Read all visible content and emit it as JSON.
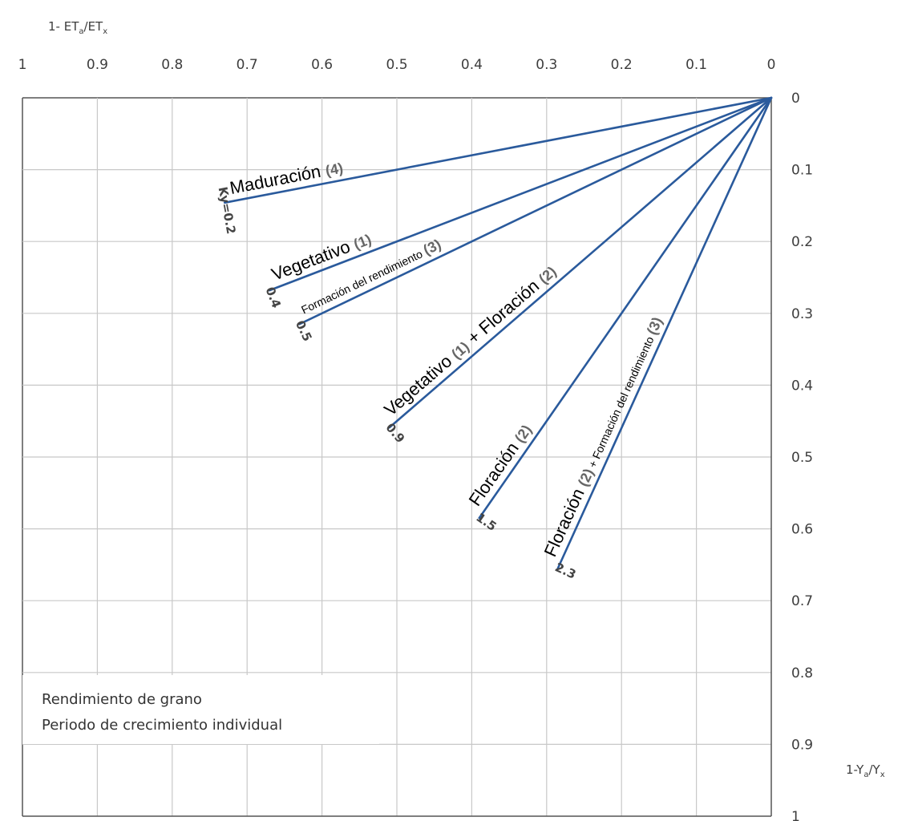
{
  "chart_data": {
    "type": "line",
    "x_axis": {
      "label_main": "1- ET",
      "label_sub1": "a",
      "label_mid": "/ET",
      "label_sub2": "x",
      "ticks": [
        "1",
        "0.9",
        "0.8",
        "0.7",
        "0.6",
        "0.5",
        "0.4",
        "0.3",
        "0.2",
        "0.1",
        "0"
      ],
      "range": [
        1,
        0
      ],
      "position": "top"
    },
    "y_axis": {
      "label_main": "1-Y",
      "label_sub1": "a",
      "label_mid": "/Y",
      "label_sub2": "x",
      "ticks": [
        "0",
        "0.1",
        "0.2",
        "0.3",
        "0.4",
        "0.5",
        "0.6",
        "0.7",
        "0.8",
        "0.9",
        "1"
      ],
      "range": [
        0,
        1
      ],
      "position": "right",
      "inverted": true
    },
    "grid": true,
    "line_color": "#2a5a9c",
    "series": [
      {
        "ky": "Ky=0.2",
        "label_parts": [
          {
            "text": "Maduración ",
            "style": "main"
          },
          {
            "text": "(4)",
            "style": "num"
          }
        ],
        "x": [
          0,
          0.73
        ],
        "y": [
          0,
          0.146
        ]
      },
      {
        "ky": "0.4",
        "label_parts": [
          {
            "text": "Vegetativo ",
            "style": "main"
          },
          {
            "text": "(1)",
            "style": "num"
          }
        ],
        "x": [
          0,
          0.67
        ],
        "y": [
          0,
          0.268
        ]
      },
      {
        "ky": "0.5",
        "label_parts": [
          {
            "text": "Formación del rendimiento ",
            "style": "small"
          },
          {
            "text": "(3)",
            "style": "num"
          }
        ],
        "x": [
          0,
          0.63
        ],
        "y": [
          0,
          0.315
        ]
      },
      {
        "ky": "0.9",
        "label_parts": [
          {
            "text": "Vegetativo ",
            "style": "main"
          },
          {
            "text": "(1)",
            "style": "num"
          },
          {
            "text": " + ",
            "style": "main"
          },
          {
            "text": "Floración ",
            "style": "main"
          },
          {
            "text": "(2)",
            "style": "num"
          }
        ],
        "x": [
          0,
          0.51
        ],
        "y": [
          0,
          0.459
        ]
      },
      {
        "ky": "1.5",
        "label_parts": [
          {
            "text": "Floración ",
            "style": "main"
          },
          {
            "text": "(2)",
            "style": "num"
          }
        ],
        "x": [
          0,
          0.39
        ],
        "y": [
          0,
          0.585
        ]
      },
      {
        "ky": "2.3",
        "label_parts": [
          {
            "text": "Floración ",
            "style": "main"
          },
          {
            "text": "(2)",
            "style": "num"
          },
          {
            "text": " + ",
            "style": "small"
          },
          {
            "text": "Formación del rendimiento ",
            "style": "small"
          },
          {
            "text": "(3)",
            "style": "num"
          }
        ],
        "x": [
          0,
          0.285
        ],
        "y": [
          0,
          0.655
        ]
      }
    ],
    "legend": {
      "lines": [
        "Rendimiento de grano",
        "Periodo de crecimiento individual"
      ],
      "placement": "bottom-left"
    }
  }
}
